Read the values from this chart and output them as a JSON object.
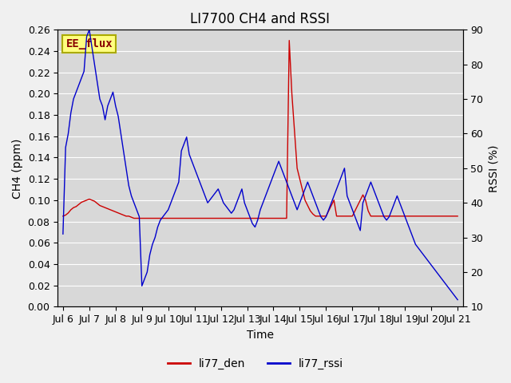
{
  "title": "LI7700 CH4 and RSSI",
  "xlabel": "Time",
  "ylabel_left": "CH4 (ppm)",
  "ylabel_right": "RSSI (%)",
  "ylim_left": [
    0.0,
    0.26
  ],
  "ylim_right": [
    10,
    90
  ],
  "yticks_left": [
    0.0,
    0.02,
    0.04,
    0.06,
    0.08,
    0.1,
    0.12,
    0.14,
    0.16,
    0.18,
    0.2,
    0.22,
    0.24,
    0.26
  ],
  "yticks_right": [
    10,
    20,
    30,
    40,
    50,
    60,
    70,
    80,
    90
  ],
  "xtick_labels": [
    "Jul 6",
    "Jul 7",
    "Jul 8",
    "Jul 9",
    "Jul 10",
    "Jul 11",
    "Jul 12",
    "Jul 13",
    "Jul 14",
    "Jul 15",
    "Jul 16",
    "Jul 17",
    "Jul 18",
    "Jul 19",
    "Jul 20",
    "Jul 21"
  ],
  "xtick_positions": [
    0,
    1,
    2,
    3,
    4,
    5,
    6,
    7,
    8,
    9,
    10,
    11,
    12,
    13,
    14,
    15
  ],
  "xlim": [
    -0.2,
    15.2
  ],
  "color_red": "#cc0000",
  "color_blue": "#0000cc",
  "background_color": "#d8d8d8",
  "figure_background": "#f0f0f0",
  "label_box_color": "#ffff80",
  "label_box_edge": "#aaaa00",
  "label_text": "EE_flux",
  "label_text_color": "#880000",
  "legend_labels": [
    "li77_den",
    "li77_rssi"
  ],
  "title_fontsize": 12,
  "axis_label_fontsize": 10,
  "tick_fontsize": 9,
  "linewidth": 1.0,
  "red_x": [
    0.0,
    0.1,
    0.2,
    0.3,
    0.4,
    0.5,
    0.6,
    0.7,
    0.8,
    0.9,
    1.0,
    1.1,
    1.2,
    1.3,
    1.4,
    1.5,
    1.6,
    1.7,
    1.8,
    1.9,
    2.0,
    2.1,
    2.2,
    2.3,
    2.4,
    2.5,
    2.6,
    2.7,
    2.8,
    2.9,
    3.0,
    3.1,
    3.2,
    3.3,
    3.4,
    3.5,
    3.6,
    3.7,
    3.8,
    3.9,
    4.0,
    4.1,
    4.2,
    4.3,
    4.4,
    4.5,
    4.6,
    4.7,
    4.8,
    4.9,
    5.0,
    5.1,
    5.2,
    5.3,
    5.4,
    5.5,
    5.6,
    5.7,
    5.8,
    5.9,
    6.0,
    6.1,
    6.2,
    6.3,
    6.4,
    6.5,
    6.6,
    6.7,
    6.8,
    6.9,
    7.0,
    7.1,
    7.2,
    7.3,
    7.4,
    7.5,
    7.6,
    7.7,
    7.8,
    7.9,
    8.0,
    8.1,
    8.2,
    8.3,
    8.4,
    8.5,
    8.6,
    8.7,
    8.8,
    8.9,
    9.0,
    9.1,
    9.2,
    9.3,
    9.4,
    9.5,
    9.6,
    9.7,
    9.8,
    9.9,
    10.0,
    10.1,
    10.2,
    10.3,
    10.4,
    10.5,
    10.6,
    10.7,
    10.8,
    10.9,
    11.0,
    11.1,
    11.2,
    11.3,
    11.4,
    11.5,
    11.6,
    11.7,
    11.8,
    11.9,
    12.0,
    12.1,
    12.2,
    12.3,
    12.4,
    12.5,
    12.6,
    12.7,
    12.8,
    12.9,
    13.0,
    13.1,
    13.2,
    13.3,
    13.4,
    13.5,
    13.6,
    13.7,
    13.8,
    13.9,
    14.0,
    14.1,
    14.2,
    14.3,
    14.4,
    14.5,
    14.6,
    14.7,
    14.8,
    14.9,
    15.0
  ],
  "red_y": [
    0.085,
    0.086,
    0.088,
    0.091,
    0.093,
    0.094,
    0.096,
    0.098,
    0.099,
    0.1,
    0.101,
    0.1,
    0.099,
    0.097,
    0.095,
    0.094,
    0.093,
    0.092,
    0.091,
    0.09,
    0.089,
    0.088,
    0.087,
    0.086,
    0.085,
    0.085,
    0.084,
    0.083,
    0.083,
    0.083,
    0.083,
    0.083,
    0.083,
    0.083,
    0.083,
    0.083,
    0.083,
    0.083,
    0.083,
    0.083,
    0.083,
    0.083,
    0.083,
    0.083,
    0.083,
    0.083,
    0.083,
    0.083,
    0.083,
    0.083,
    0.083,
    0.083,
    0.083,
    0.083,
    0.083,
    0.083,
    0.083,
    0.083,
    0.083,
    0.083,
    0.083,
    0.083,
    0.083,
    0.083,
    0.083,
    0.083,
    0.083,
    0.083,
    0.083,
    0.083,
    0.083,
    0.083,
    0.083,
    0.083,
    0.083,
    0.083,
    0.083,
    0.083,
    0.083,
    0.083,
    0.083,
    0.083,
    0.083,
    0.083,
    0.083,
    0.083,
    0.25,
    0.2,
    0.165,
    0.13,
    0.12,
    0.11,
    0.1,
    0.095,
    0.09,
    0.087,
    0.085,
    0.085,
    0.085,
    0.085,
    0.085,
    0.09,
    0.095,
    0.1,
    0.085,
    0.085,
    0.085,
    0.085,
    0.085,
    0.085,
    0.085,
    0.09,
    0.095,
    0.1,
    0.105,
    0.1,
    0.09,
    0.085,
    0.085,
    0.085,
    0.085,
    0.085,
    0.085,
    0.085,
    0.085,
    0.085,
    0.085,
    0.085,
    0.085,
    0.085,
    0.085,
    0.085,
    0.085,
    0.085,
    0.085,
    0.085,
    0.085,
    0.085,
    0.085,
    0.085,
    0.085,
    0.085,
    0.085,
    0.085,
    0.085,
    0.085,
    0.085,
    0.085,
    0.085,
    0.085,
    0.085
  ],
  "blue_x": [
    0.0,
    0.1,
    0.2,
    0.3,
    0.4,
    0.5,
    0.6,
    0.7,
    0.8,
    0.9,
    1.0,
    1.1,
    1.2,
    1.3,
    1.4,
    1.5,
    1.6,
    1.7,
    1.8,
    1.9,
    2.0,
    2.1,
    2.2,
    2.3,
    2.4,
    2.5,
    2.6,
    2.7,
    2.8,
    2.9,
    3.0,
    3.1,
    3.2,
    3.3,
    3.4,
    3.5,
    3.6,
    3.7,
    3.8,
    3.9,
    4.0,
    4.1,
    4.2,
    4.3,
    4.4,
    4.5,
    4.6,
    4.7,
    4.8,
    4.9,
    5.0,
    5.1,
    5.2,
    5.3,
    5.4,
    5.5,
    5.6,
    5.7,
    5.8,
    5.9,
    6.0,
    6.1,
    6.2,
    6.3,
    6.4,
    6.5,
    6.6,
    6.7,
    6.8,
    6.9,
    7.0,
    7.1,
    7.2,
    7.3,
    7.4,
    7.5,
    7.6,
    7.7,
    7.8,
    7.9,
    8.0,
    8.1,
    8.2,
    8.3,
    8.4,
    8.5,
    8.6,
    8.7,
    8.8,
    8.9,
    9.0,
    9.1,
    9.2,
    9.3,
    9.4,
    9.5,
    9.6,
    9.7,
    9.8,
    9.9,
    10.0,
    10.1,
    10.2,
    10.3,
    10.4,
    10.5,
    10.6,
    10.7,
    10.8,
    10.9,
    11.0,
    11.1,
    11.2,
    11.3,
    11.4,
    11.5,
    11.6,
    11.7,
    11.8,
    11.9,
    12.0,
    12.1,
    12.2,
    12.3,
    12.4,
    12.5,
    12.6,
    12.7,
    12.8,
    12.9,
    13.0,
    13.1,
    13.2,
    13.3,
    13.4,
    13.5,
    13.6,
    13.7,
    13.8,
    13.9,
    14.0,
    14.1,
    14.2,
    14.3,
    14.4,
    14.5,
    14.6,
    14.7,
    14.8,
    14.9,
    15.0
  ],
  "blue_y": [
    31,
    56,
    60,
    66,
    70,
    72,
    74,
    76,
    78,
    88,
    90,
    85,
    80,
    75,
    70,
    68,
    64,
    68,
    70,
    72,
    68,
    65,
    60,
    55,
    50,
    45,
    42,
    40,
    38,
    36,
    16,
    18,
    20,
    25,
    28,
    30,
    33,
    35,
    36,
    37,
    38,
    40,
    42,
    44,
    46,
    55,
    57,
    59,
    54,
    52,
    50,
    48,
    46,
    44,
    42,
    40,
    41,
    42,
    43,
    44,
    42,
    40,
    39,
    38,
    37,
    38,
    40,
    42,
    44,
    40,
    38,
    36,
    34,
    33,
    35,
    38,
    40,
    42,
    44,
    46,
    48,
    50,
    52,
    50,
    48,
    46,
    44,
    42,
    40,
    38,
    40,
    42,
    44,
    46,
    44,
    42,
    40,
    38,
    36,
    35,
    36,
    38,
    40,
    42,
    44,
    46,
    48,
    50,
    42,
    40,
    38,
    36,
    34,
    32,
    40,
    42,
    44,
    46,
    44,
    42,
    40,
    38,
    36,
    35,
    36,
    38,
    40,
    42,
    40,
    38,
    36,
    34,
    32,
    30,
    28,
    27,
    26,
    25,
    24,
    23,
    22,
    21,
    20,
    19,
    18,
    17,
    16,
    15,
    14,
    13,
    12
  ]
}
